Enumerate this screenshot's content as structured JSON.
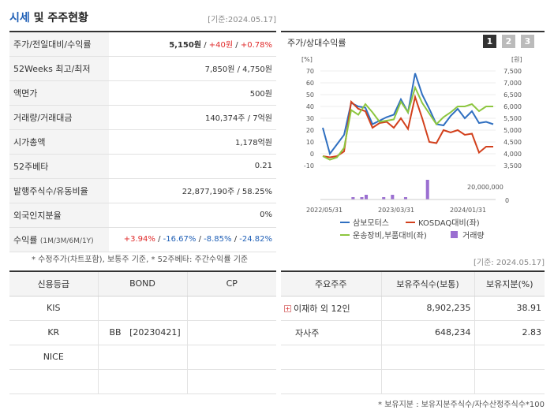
{
  "header": {
    "title_prefix": "시세",
    "title_suffix": " 및 주주현황",
    "date": "[기준:2024.05.17]"
  },
  "price_rows": [
    {
      "label": "주가/전일대비/수익률"
    },
    {
      "label": "52Weeks 최고/최저",
      "value": "7,850원 / 4,750원"
    },
    {
      "label": "액면가",
      "value": "500원"
    },
    {
      "label": "거래량/거래대금",
      "value": "140,374주 / 7억원"
    },
    {
      "label": "시가총액",
      "value": "1,178억원"
    },
    {
      "label": "52주베타",
      "value": "0.21"
    },
    {
      "label": "발행주식수/유동비율",
      "value": "22,877,190주 / 58.25%"
    },
    {
      "label": "외국인지분율",
      "value": "0%"
    },
    {
      "label": "수익률",
      "label_small": "(1M/3M/6M/1Y)"
    }
  ],
  "price_main": {
    "price": "5,150원",
    "change": "+40원",
    "rate": "+0.78%"
  },
  "returns": {
    "m1": "+3.94%",
    "m3": "-16.67%",
    "m6": "-8.85%",
    "y1": "-24.82%"
  },
  "note1": "* 수정주가(차트포함), 보통주 기준, * 52주베타: 주간수익률 기준",
  "chart_panel": {
    "title": "주가/상대수익률",
    "pages": [
      "1",
      "2",
      "3"
    ]
  },
  "chart_data": {
    "type": "line",
    "left_axis_unit": "[%]",
    "right_axis_unit": "[원]",
    "left_ticks": [
      "70",
      "60",
      "50",
      "40",
      "30",
      "20",
      "10",
      "0",
      "-10"
    ],
    "right_ticks": [
      "7,500",
      "7,000",
      "6,500",
      "6,000",
      "5,500",
      "5,000",
      "4,500",
      "4,000",
      "3,500"
    ],
    "volume_ticks": [
      "20,000,000",
      "0"
    ],
    "x_ticks": [
      "2022/05/31",
      "2023/03/31",
      "2024/01/31"
    ],
    "ylim": [
      -10,
      70
    ],
    "series": [
      {
        "name": "삼보모터스",
        "color": "#2f6fc0",
        "values": [
          22,
          0,
          8,
          16,
          43,
          40,
          39,
          25,
          28,
          31,
          33,
          46,
          35,
          68,
          50,
          38,
          25,
          24,
          32,
          38,
          30,
          36,
          26,
          27,
          25
        ]
      },
      {
        "name": "KOSDAQ대비(좌)",
        "color": "#d2401c",
        "values": [
          -2,
          -3,
          -2,
          2,
          44,
          38,
          36,
          22,
          26,
          27,
          22,
          30,
          21,
          48,
          30,
          10,
          9,
          20,
          18,
          20,
          16,
          17,
          1,
          6,
          6
        ]
      },
      {
        "name": "운송장비,부품대비(좌)",
        "color": "#8dc63f",
        "values": [
          -2,
          -5,
          -3,
          5,
          37,
          33,
          42,
          35,
          27,
          28,
          29,
          44,
          35,
          56,
          43,
          34,
          25,
          31,
          35,
          40,
          40,
          42,
          36,
          40,
          40
        ]
      }
    ],
    "volume": {
      "name": "거래량",
      "color": "#9b6fd1",
      "values": [
        0,
        0,
        0,
        0,
        0,
        0,
        0,
        3,
        0,
        3,
        6,
        0,
        0,
        0,
        3,
        0,
        6,
        0,
        0,
        3,
        0,
        0,
        0,
        0,
        25,
        0,
        0,
        0,
        0,
        0,
        0,
        0,
        0,
        0,
        0,
        0,
        0,
        0,
        0,
        0
      ]
    }
  },
  "note2": "[기준: 2024.05.17]",
  "credit": {
    "headers": [
      "신용등급",
      "BOND",
      "CP"
    ],
    "rows": [
      [
        "KIS",
        "",
        ""
      ],
      [
        "KR",
        "BB   [20230421]",
        ""
      ],
      [
        "NICE",
        "",
        ""
      ],
      [
        "",
        "",
        ""
      ]
    ]
  },
  "holders": {
    "headers": [
      "주요주주",
      "보유주식수(보통)",
      "보유지분(%)"
    ],
    "rows": [
      [
        "이재하 외 12인",
        "8,902,235",
        "38.91"
      ],
      [
        "자사주",
        "648,234",
        "2.83"
      ],
      [
        "",
        "",
        ""
      ],
      [
        "",
        "",
        ""
      ]
    ]
  },
  "note3": "* 보유지분 : 보유지분주식수/자수산정주식수*100"
}
